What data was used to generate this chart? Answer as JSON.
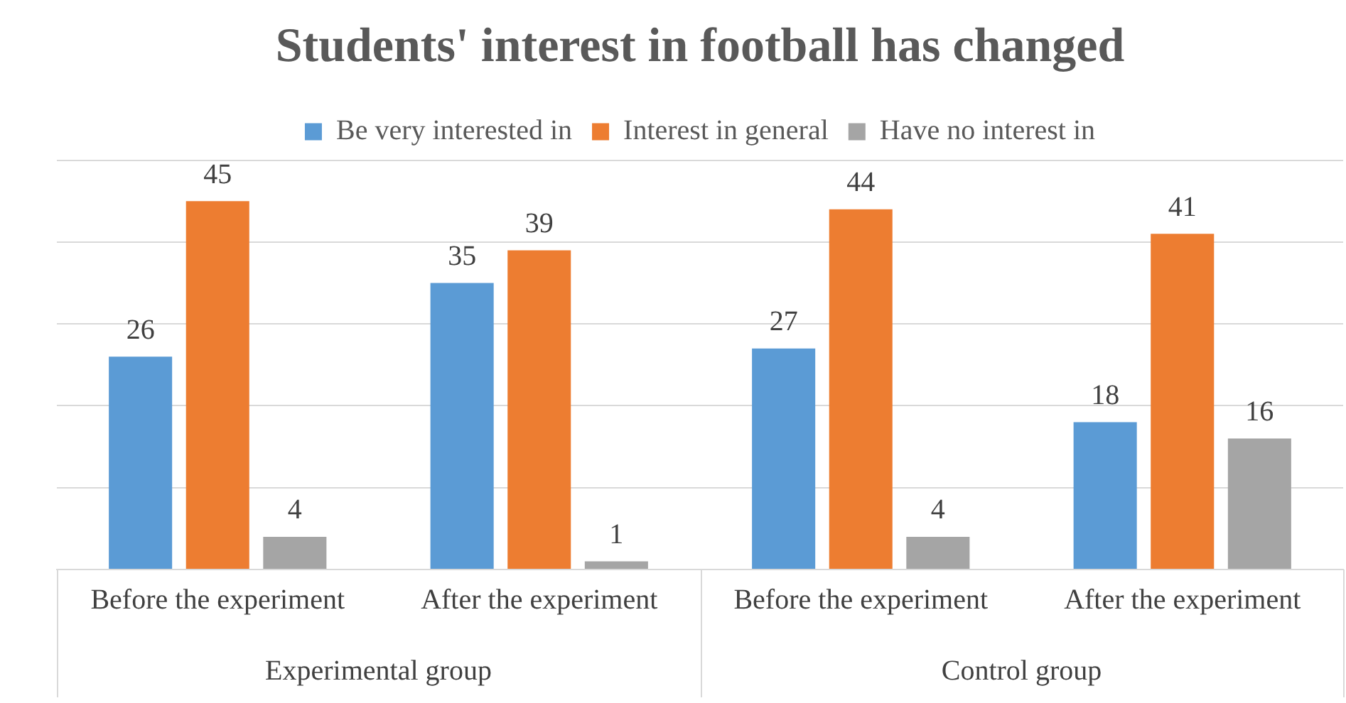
{
  "chart_data": {
    "type": "bar",
    "title": "Students' interest in football has changed",
    "categories": [
      "Before the experiment",
      "After the experiment",
      "Before the experiment",
      "After the experiment"
    ],
    "series": [
      {
        "name": "Be very interested in",
        "color": "#5b9bd5",
        "values": [
          26,
          35,
          27,
          18
        ]
      },
      {
        "name": "Interest in general",
        "color": "#ed7d31",
        "values": [
          45,
          39,
          44,
          41
        ]
      },
      {
        "name": "Have no interest in",
        "color": "#a5a5a5",
        "values": [
          4,
          1,
          4,
          16
        ]
      }
    ],
    "ylim": [
      0,
      50
    ],
    "yticks": [
      {
        "value": 0,
        "label": null
      },
      {
        "value": 10,
        "label": null
      },
      {
        "value": 20,
        "label": null
      },
      {
        "value": 30,
        "label": null
      },
      {
        "value": 40,
        "label": null
      },
      {
        "value": 50,
        "label": null
      }
    ],
    "tick_labels": "x",
    "grid": "y",
    "legend": "top",
    "data_labels": true,
    "annotations": [
      "Experimental group",
      "Control group"
    ]
  }
}
